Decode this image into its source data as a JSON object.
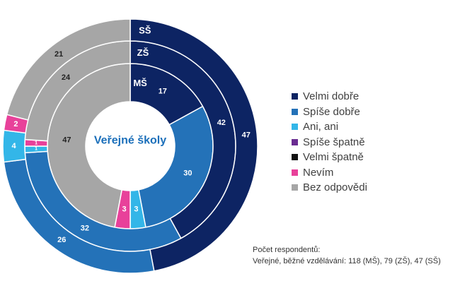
{
  "chart_data": {
    "type": "pie",
    "title": "Veřejné školy",
    "categories": [
      "Velmi dobře",
      "Spíše dobře",
      "Ani, ani",
      "Spíše špatně",
      "Velmi špatně",
      "Nevím",
      "Bez odpovědi"
    ],
    "colors": [
      "#0d2463",
      "#2472b8",
      "#33b6e8",
      "#6a2c91",
      "#111111",
      "#e8419a",
      "#a6a6a6"
    ],
    "series": [
      {
        "name": "MŠ",
        "values": [
          17,
          30,
          3,
          0,
          0,
          3,
          47
        ],
        "labels": [
          "17",
          "30",
          "3",
          "",
          "",
          "3",
          "47"
        ]
      },
      {
        "name": "ZŠ",
        "values": [
          42,
          32,
          1,
          0,
          0,
          1,
          24
        ],
        "labels": [
          "42",
          "32",
          "1",
          "",
          "",
          "1",
          "24"
        ]
      },
      {
        "name": "SŠ",
        "values": [
          47,
          26,
          4,
          0,
          0,
          2,
          21
        ],
        "labels": [
          "47",
          "26",
          "4",
          "",
          "",
          "2",
          "21"
        ]
      }
    ],
    "legend_position": "right"
  },
  "note": {
    "line1": "Počet respondentů:",
    "line2": "Veřejné, běžné vzdělávání: 118 (MŠ), 79 (ZŠ), 47 (SŠ)"
  }
}
